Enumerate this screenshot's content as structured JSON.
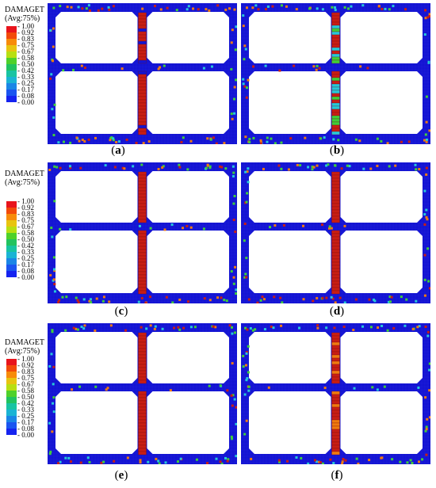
{
  "legend": {
    "title_line1": "DAMAGET",
    "title_line2": "(Avg:75%)",
    "ticks": [
      "1.00",
      "0.92",
      "0.83",
      "0.75",
      "0.67",
      "0.58",
      "0.50",
      "0.42",
      "0.33",
      "0.25",
      "0.17",
      "0.08",
      "0.00"
    ],
    "colors": [
      "#e8141c",
      "#f24a0a",
      "#f78b0a",
      "#e8c410",
      "#b8df12",
      "#4fd12a",
      "#22c35f",
      "#18c4a2",
      "#1ab4d4",
      "#1a86e6",
      "#1a55f0",
      "#1523f0"
    ]
  },
  "panels": [
    {
      "id": "a",
      "caption_open": "(",
      "caption_letter": "a",
      "caption_close": ")"
    },
    {
      "id": "b",
      "caption_open": "(",
      "caption_letter": "b",
      "caption_close": ")"
    },
    {
      "id": "c",
      "caption_open": "(",
      "caption_letter": "c",
      "caption_close": ")"
    },
    {
      "id": "d",
      "caption_open": "(",
      "caption_letter": "d",
      "caption_close": ")"
    },
    {
      "id": "e",
      "caption_open": "(",
      "caption_letter": "e",
      "caption_close": ")"
    },
    {
      "id": "f",
      "caption_open": "(",
      "caption_letter": "f",
      "caption_close": ")"
    }
  ],
  "colors": {
    "mesh_blue": "#1414d2",
    "column_red": "#c81e14",
    "damage_orange": "#f07a10",
    "damage_cyan": "#27c9d8",
    "damage_green": "#3fcf3a"
  }
}
